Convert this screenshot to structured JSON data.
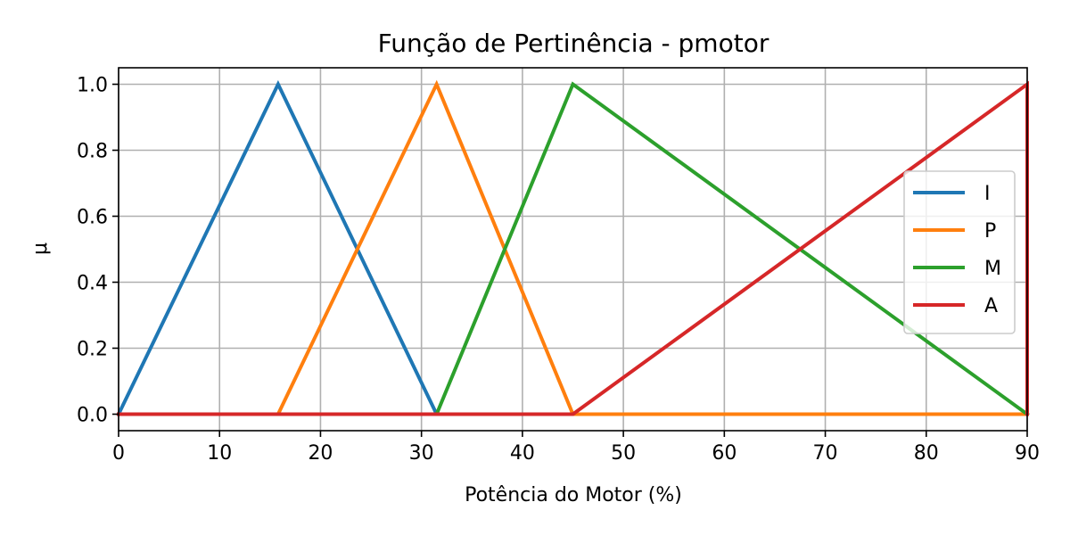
{
  "chart_data": {
    "type": "line",
    "title": "Função de Pertinência - pmotor",
    "xlabel": "Potência do Motor (%)",
    "ylabel": "μ",
    "xlim": [
      0,
      90
    ],
    "ylim": [
      -0.05,
      1.05
    ],
    "xticks": [
      0,
      10,
      20,
      30,
      40,
      50,
      60,
      70,
      80,
      90
    ],
    "yticks": [
      0.0,
      0.2,
      0.4,
      0.6,
      0.8,
      1.0
    ],
    "xtick_labels": [
      "0",
      "10",
      "20",
      "30",
      "40",
      "50",
      "60",
      "70",
      "80",
      "90"
    ],
    "ytick_labels": [
      "0.0",
      "0.2",
      "0.4",
      "0.6",
      "0.8",
      "1.0"
    ],
    "grid": true,
    "legend_position": "right",
    "series": [
      {
        "name": "I",
        "color": "#1f77b4",
        "x": [
          0,
          15.8,
          31.5,
          90
        ],
        "y": [
          0,
          1,
          0,
          0
        ]
      },
      {
        "name": "P",
        "color": "#ff7f0e",
        "x": [
          0,
          15.8,
          31.5,
          45,
          90
        ],
        "y": [
          0,
          0,
          1,
          0,
          0
        ]
      },
      {
        "name": "M",
        "color": "#2ca02c",
        "x": [
          0,
          31.5,
          45,
          90
        ],
        "y": [
          0,
          0,
          1,
          0
        ]
      },
      {
        "name": "A",
        "color": "#d62728",
        "x": [
          0,
          45,
          90,
          90
        ],
        "y": [
          0,
          0,
          1,
          0
        ]
      }
    ]
  }
}
